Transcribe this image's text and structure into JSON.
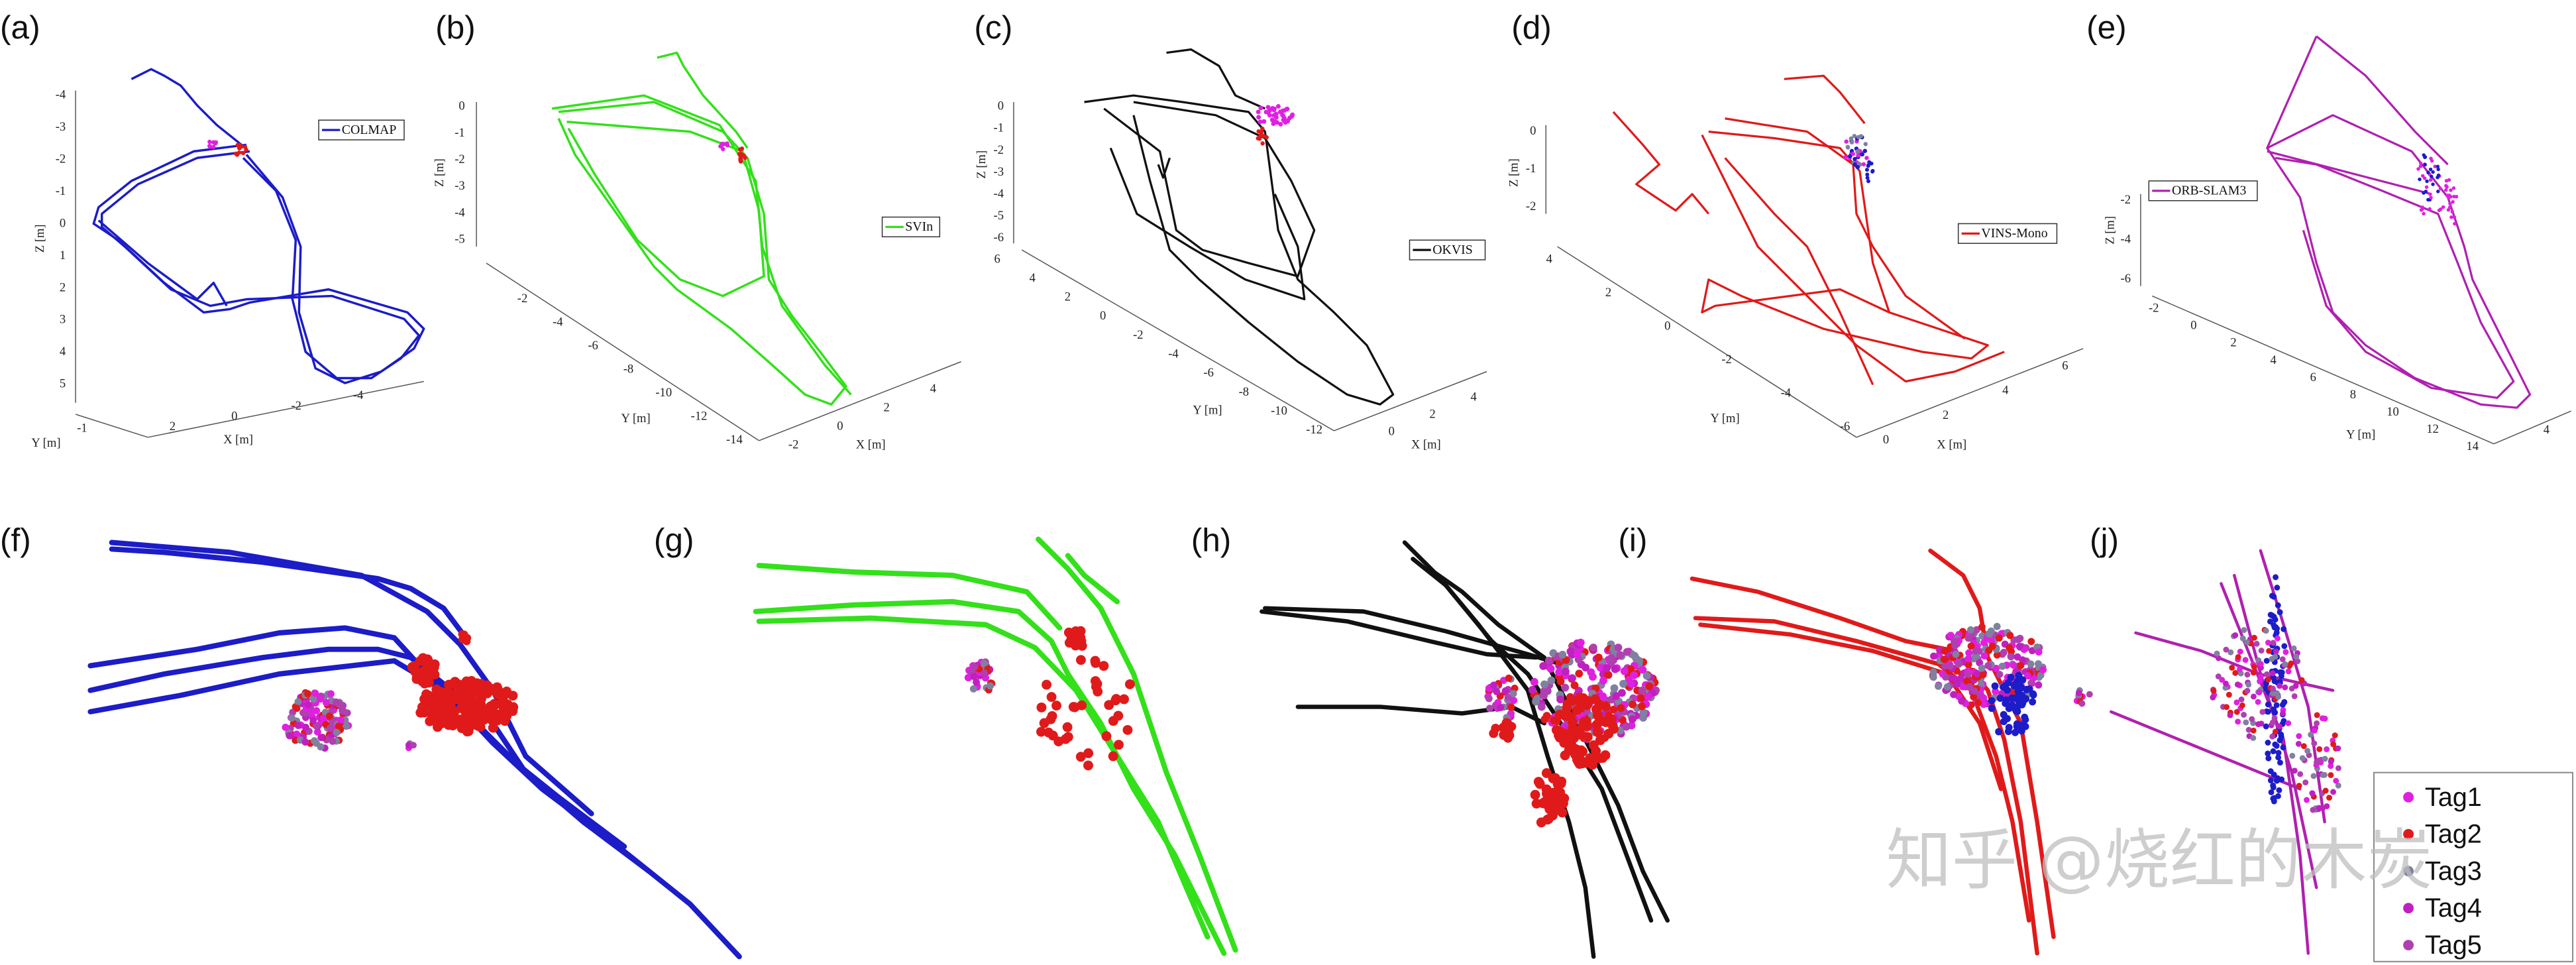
{
  "panels": [
    {
      "label": "(a)",
      "legend": "COLMAP",
      "z_label": "Z [m]",
      "y_label": "Y [m]",
      "x_label": "X [m]",
      "z_ticks": [
        -4,
        -3,
        -2,
        -1,
        0,
        1,
        2,
        3,
        4,
        5
      ],
      "y_ticks": [
        -1
      ],
      "x_ticks": [
        2,
        0,
        -2,
        -4
      ]
    },
    {
      "label": "(b)",
      "legend": "SVIn",
      "z_label": "Z [m]",
      "y_label": "Y [m]",
      "x_label": "X [m]",
      "z_ticks": [
        0,
        -1,
        -2,
        -3,
        -4,
        -5
      ],
      "y_ticks": [
        -2,
        -4,
        -6,
        -8,
        -10,
        -12,
        -14
      ],
      "x_ticks": [
        -2,
        0,
        2,
        4
      ]
    },
    {
      "label": "(c)",
      "legend": "OKVIS",
      "z_label": "Z [m]",
      "y_label": "Y [m]",
      "x_label": "X [m]",
      "z_ticks": [
        0,
        -1,
        -2,
        -3,
        -4,
        -5,
        -6
      ],
      "y_ticks": [
        6,
        4,
        2,
        0,
        -2,
        -4,
        -6,
        -8,
        -10,
        -12
      ],
      "x_ticks": [
        0,
        2,
        4
      ]
    },
    {
      "label": "(d)",
      "legend": "VINS-Mono",
      "z_label": "Z [m]",
      "y_label": "Y [m]",
      "x_label": "X [m]",
      "z_ticks": [
        0,
        -1,
        -2
      ],
      "y_ticks": [
        4,
        2,
        0,
        -2,
        -4,
        -6
      ],
      "x_ticks": [
        0,
        2,
        4,
        6
      ]
    },
    {
      "label": "(e)",
      "legend": "ORB-SLAM3",
      "z_label": "Z [m]",
      "y_label": "Y [m]",
      "z_ticks": [
        -2,
        -4,
        -6
      ],
      "y_ticks": [
        -2,
        0,
        2,
        4,
        6,
        8,
        10,
        12,
        14
      ],
      "x_ticks": [
        4
      ]
    }
  ],
  "zoom_panels": [
    {
      "label": "(f)"
    },
    {
      "label": "(g)"
    },
    {
      "label": "(h)"
    },
    {
      "label": "(i)"
    },
    {
      "label": "(j)"
    }
  ],
  "tag_legend": [
    "Tag1",
    "Tag2",
    "Tag3",
    "Tag4",
    "Tag5"
  ],
  "watermark": "知乎 @烧红的木炭"
}
